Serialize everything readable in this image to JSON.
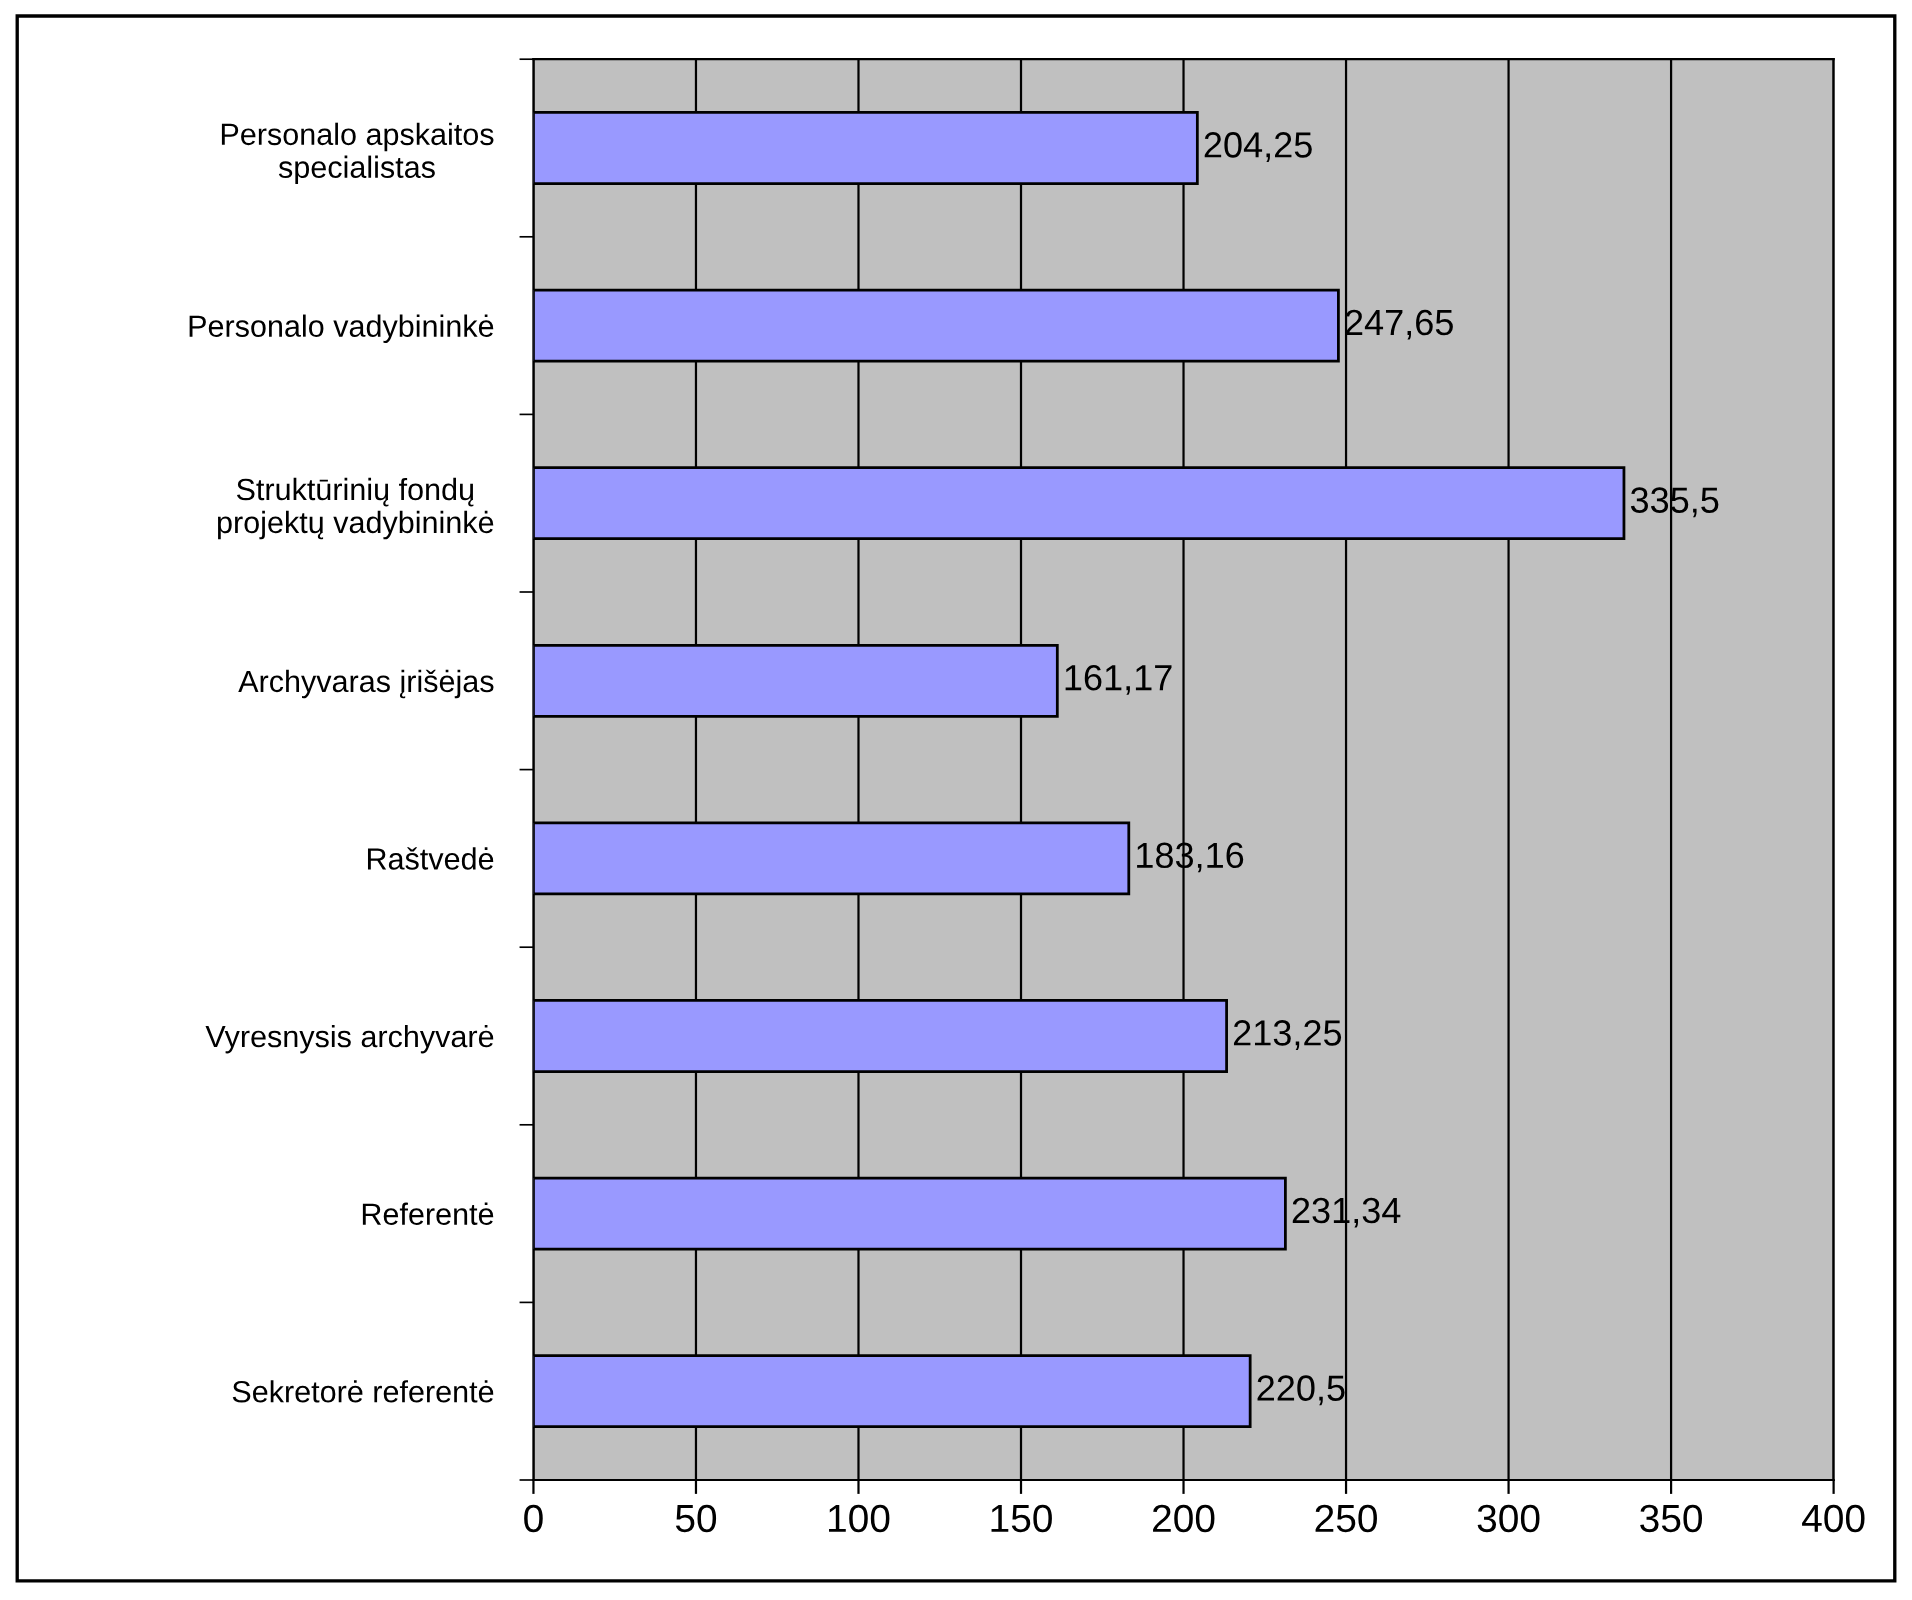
{
  "chart_data": {
    "type": "bar",
    "orientation": "horizontal",
    "categories": [
      "Personalo apskaitos\nspecialistas",
      "Personalo vadybininkė",
      "Struktūrinių fondų\nprojektų vadybininkė",
      "Archyvaras įrišėjas",
      "Raštvedė",
      "Vyresnysis archyvarė",
      "Referentė",
      "Sekretorė referentė"
    ],
    "values": [
      204.25,
      247.65,
      335.5,
      161.17,
      183.16,
      213.25,
      231.34,
      220.5
    ],
    "value_labels": [
      "204,25",
      "247,65",
      "335,5",
      "161,17",
      "183,16",
      "213,25",
      "231,34",
      "220,5"
    ],
    "color": "#9999ff",
    "xlim": [
      0,
      400
    ],
    "xticks": [
      0,
      50,
      100,
      150,
      200,
      250,
      300,
      350,
      400
    ],
    "grid": "x",
    "legend": false
  }
}
